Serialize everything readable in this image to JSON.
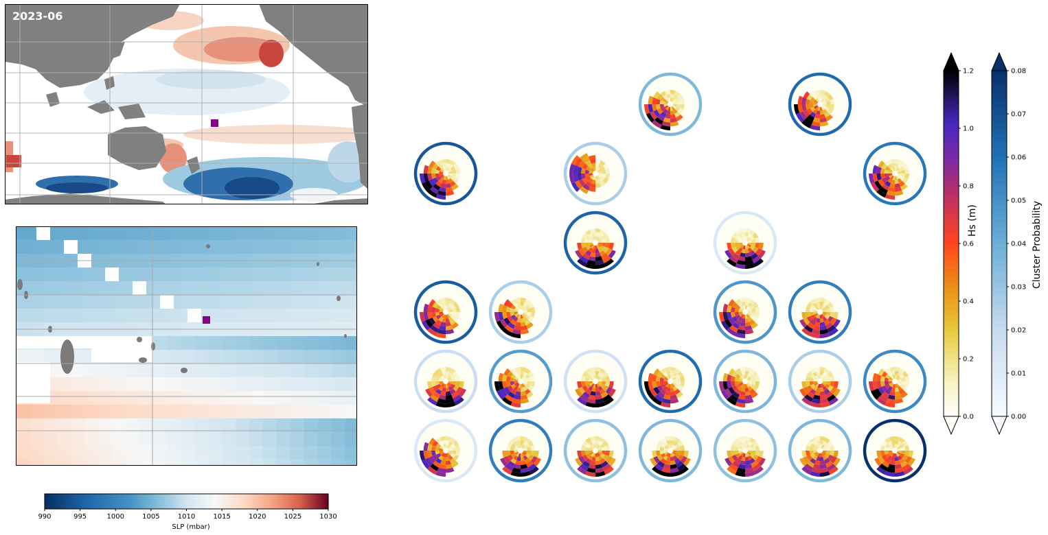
{
  "top_map": {
    "label": "2023-06",
    "colors": {
      "land": "#808080",
      "ocean": "#ffffff",
      "grid": "#b0b0b0",
      "marker": "#8b008b"
    }
  },
  "bottom_map": {
    "colors": {
      "land": "#7a7a7a",
      "grid": "#a8a8a8",
      "marker": "#8b008b"
    }
  },
  "slp_colorbar": {
    "label": "SLP (mbar)",
    "ticks": [
      "990",
      "995",
      "1000",
      "1005",
      "1010",
      "1015",
      "1020",
      "1025",
      "1030"
    ],
    "range": [
      990,
      1030
    ],
    "colormap": "RdBu_r"
  },
  "hs_colorbar": {
    "label": "Hs (m)",
    "ticks": [
      "0.0",
      "0.2",
      "0.4",
      "0.6",
      "0.8",
      "1.0",
      "1.2"
    ],
    "range": [
      0,
      1.2
    ],
    "colormap": "CMRmap_r"
  },
  "prob_colorbar": {
    "label": "Cluster Probability",
    "ticks": [
      "0.00",
      "0.01",
      "0.02",
      "0.03",
      "0.04",
      "0.05",
      "0.06",
      "0.07",
      "0.08"
    ],
    "range": [
      0,
      0.08
    ],
    "colormap": "Blues"
  },
  "chart_data": [
    {
      "type": "heatmap",
      "title": "2023-06",
      "description_colormap": "RdBu_r",
      "colorbar_label": "SLP (mbar)",
      "colorbar_range": [
        990,
        1030
      ]
    },
    {
      "type": "polar-grid",
      "colorbar_hs": {
        "label": "Hs (m)",
        "range": [
          0,
          1.2
        ],
        "extend": "both"
      },
      "colorbar_prob": {
        "label": "Cluster Probability",
        "range": [
          0,
          0.08
        ],
        "extend": "both"
      },
      "grid_rows": 6,
      "grid_cols": 7,
      "cells": [
        {
          "row": 0,
          "col": 3,
          "probability": 0.036,
          "peak": "sw"
        },
        {
          "row": 0,
          "col": 5,
          "probability": 0.062,
          "peak": "sw"
        },
        {
          "row": 1,
          "col": 0,
          "probability": 0.068,
          "peak": "sw"
        },
        {
          "row": 1,
          "col": 2,
          "probability": 0.026,
          "peak": "w"
        },
        {
          "row": 1,
          "col": 6,
          "probability": 0.058,
          "peak": "sw"
        },
        {
          "row": 2,
          "col": 2,
          "probability": 0.064,
          "peak": "s"
        },
        {
          "row": 2,
          "col": 4,
          "probability": 0.012,
          "peak": "s"
        },
        {
          "row": 3,
          "col": 0,
          "probability": 0.066,
          "peak": "sw"
        },
        {
          "row": 3,
          "col": 1,
          "probability": 0.026,
          "peak": "sw"
        },
        {
          "row": 3,
          "col": 4,
          "probability": 0.048,
          "peak": "sw"
        },
        {
          "row": 3,
          "col": 5,
          "probability": 0.056,
          "peak": "s"
        },
        {
          "row": 4,
          "col": 0,
          "probability": 0.018,
          "peak": "s"
        },
        {
          "row": 4,
          "col": 1,
          "probability": 0.046,
          "peak": "sw"
        },
        {
          "row": 4,
          "col": 2,
          "probability": 0.016,
          "peak": "s"
        },
        {
          "row": 4,
          "col": 3,
          "probability": 0.062,
          "peak": "sw"
        },
        {
          "row": 4,
          "col": 4,
          "probability": 0.036,
          "peak": "sw"
        },
        {
          "row": 4,
          "col": 5,
          "probability": 0.026,
          "peak": "s"
        },
        {
          "row": 4,
          "col": 6,
          "probability": 0.052,
          "peak": "sw"
        },
        {
          "row": 5,
          "col": 0,
          "probability": 0.012,
          "peak": "sw"
        },
        {
          "row": 5,
          "col": 1,
          "probability": 0.056,
          "peak": "s"
        },
        {
          "row": 5,
          "col": 2,
          "probability": 0.032,
          "peak": "s"
        },
        {
          "row": 5,
          "col": 3,
          "probability": 0.036,
          "peak": "s"
        },
        {
          "row": 5,
          "col": 4,
          "probability": 0.032,
          "peak": "s"
        },
        {
          "row": 5,
          "col": 5,
          "probability": 0.036,
          "peak": "s"
        },
        {
          "row": 5,
          "col": 6,
          "probability": 0.09,
          "peak": "s"
        }
      ]
    }
  ]
}
